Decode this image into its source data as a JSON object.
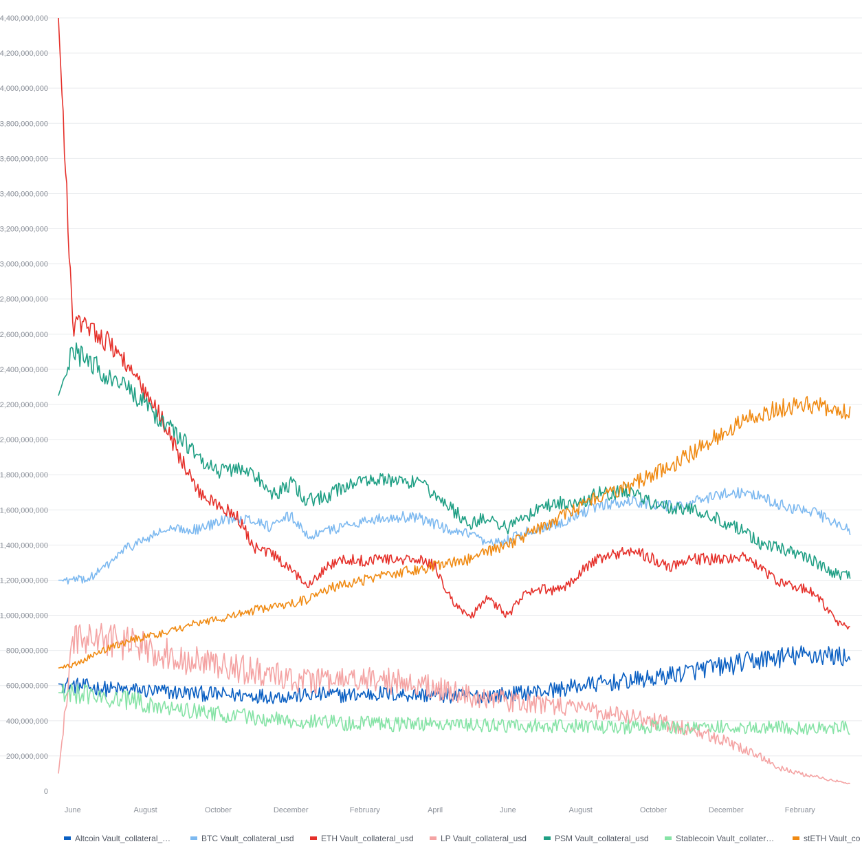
{
  "chart_data": {
    "type": "line",
    "title": "",
    "xlabel": "",
    "ylabel": "",
    "ylim": [
      0,
      4400000000
    ],
    "y_ticks": [
      0,
      200000000,
      400000000,
      600000000,
      800000000,
      1000000000,
      1200000000,
      1400000000,
      1600000000,
      1800000000,
      2000000000,
      2200000000,
      2400000000,
      2600000000,
      2800000000,
      3000000000,
      3200000000,
      3400000000,
      3600000000,
      3800000000,
      4000000000,
      4200000000,
      4400000000
    ],
    "y_tick_labels": [
      "0",
      "200,000,000",
      "400,000,000",
      "600,000,000",
      "800,000,000",
      "1,000,000,000",
      "1,200,000,000",
      "1,400,000,000",
      "1,600,000,000",
      "1,800,000,000",
      "2,000,000,000",
      "2,200,000,000",
      "2,400,000,000",
      "2,600,000,000",
      "2,800,000,000",
      "3,000,000,000",
      "3,200,000,000",
      "3,400,000,000",
      "3,600,000,000",
      "3,800,000,000",
      "4,000,000,000",
      "4,200,000,000",
      "4,400,000,000"
    ],
    "x": [
      "2021-05-20",
      "2021-06-01",
      "2021-06-15",
      "2021-07-01",
      "2021-07-15",
      "2021-08-01",
      "2021-08-15",
      "2021-09-01",
      "2021-09-15",
      "2021-10-01",
      "2021-10-15",
      "2021-11-01",
      "2021-11-15",
      "2021-12-01",
      "2021-12-15",
      "2022-01-01",
      "2022-01-15",
      "2022-02-01",
      "2022-02-15",
      "2022-03-01",
      "2022-03-15",
      "2022-04-01",
      "2022-04-15",
      "2022-05-01",
      "2022-05-15",
      "2022-06-01",
      "2022-06-15",
      "2022-07-01",
      "2022-07-15",
      "2022-08-01",
      "2022-08-15",
      "2022-09-01",
      "2022-09-15",
      "2022-10-01",
      "2022-10-15",
      "2022-11-01",
      "2022-11-15",
      "2022-12-01",
      "2022-12-15",
      "2023-01-01",
      "2023-01-15",
      "2023-02-01",
      "2023-02-15",
      "2023-03-01",
      "2023-03-15"
    ],
    "x_tick_positions": [
      "2021-06-01",
      "2021-08-01",
      "2021-10-01",
      "2021-12-01",
      "2022-02-01",
      "2022-04-01",
      "2022-06-01",
      "2022-08-01",
      "2022-10-01",
      "2022-12-01",
      "2023-02-01"
    ],
    "x_tick_labels": [
      "June",
      "August",
      "October",
      "December",
      "February",
      "April",
      "June",
      "August",
      "October",
      "December",
      "February"
    ],
    "legend_position": "bottom",
    "series": [
      {
        "name": "Altcoin Vault_collateral_usd",
        "legend_label": "Altcoin Vault_collateral_…",
        "color": "#0a5fc2",
        "values": [
          610000000,
          600000000,
          590000000,
          580000000,
          575000000,
          570000000,
          565000000,
          560000000,
          555000000,
          550000000,
          545000000,
          545000000,
          540000000,
          540000000,
          545000000,
          550000000,
          545000000,
          550000000,
          555000000,
          550000000,
          548000000,
          545000000,
          540000000,
          540000000,
          545000000,
          550000000,
          560000000,
          570000000,
          580000000,
          600000000,
          610000000,
          620000000,
          630000000,
          640000000,
          660000000,
          680000000,
          700000000,
          710000000,
          730000000,
          750000000,
          760000000,
          770000000,
          775000000,
          770000000,
          760000000
        ]
      },
      {
        "name": "BTC Vault_collateral_usd",
        "legend_label": "BTC Vault_collateral_usd",
        "color": "#7db9f0",
        "values": [
          1200000000,
          1200000000,
          1210000000,
          1290000000,
          1380000000,
          1430000000,
          1480000000,
          1490000000,
          1490000000,
          1530000000,
          1560000000,
          1540000000,
          1500000000,
          1570000000,
          1450000000,
          1480000000,
          1510000000,
          1540000000,
          1550000000,
          1560000000,
          1560000000,
          1520000000,
          1470000000,
          1460000000,
          1400000000,
          1430000000,
          1470000000,
          1500000000,
          1530000000,
          1580000000,
          1620000000,
          1640000000,
          1650000000,
          1630000000,
          1620000000,
          1640000000,
          1660000000,
          1700000000,
          1700000000,
          1670000000,
          1630000000,
          1600000000,
          1580000000,
          1530000000,
          1480000000
        ]
      },
      {
        "name": "ETH Vault_collateral_usd",
        "legend_label": "ETH Vault_collateral_usd",
        "color": "#e5302a",
        "values": [
          4400000000,
          2650000000,
          2650000000,
          2550000000,
          2450000000,
          2250000000,
          2120000000,
          1870000000,
          1700000000,
          1620000000,
          1580000000,
          1380000000,
          1350000000,
          1250000000,
          1180000000,
          1280000000,
          1320000000,
          1310000000,
          1330000000,
          1310000000,
          1320000000,
          1280000000,
          1080000000,
          990000000,
          1100000000,
          1000000000,
          1120000000,
          1150000000,
          1140000000,
          1250000000,
          1320000000,
          1350000000,
          1370000000,
          1320000000,
          1280000000,
          1320000000,
          1320000000,
          1320000000,
          1340000000,
          1260000000,
          1180000000,
          1160000000,
          1120000000,
          980000000,
          920000000
        ]
      },
      {
        "name": "LP Vault_collateral_usd",
        "legend_label": "LP Vault_collateral_usd",
        "color": "#f4a3a3",
        "values": [
          100000000,
          850000000,
          870000000,
          860000000,
          840000000,
          820000000,
          790000000,
          760000000,
          730000000,
          720000000,
          700000000,
          680000000,
          660000000,
          640000000,
          630000000,
          620000000,
          630000000,
          640000000,
          630000000,
          620000000,
          610000000,
          590000000,
          560000000,
          540000000,
          530000000,
          510000000,
          500000000,
          490000000,
          480000000,
          470000000,
          460000000,
          440000000,
          420000000,
          400000000,
          380000000,
          350000000,
          320000000,
          280000000,
          240000000,
          190000000,
          130000000,
          100000000,
          80000000,
          60000000,
          40000000
        ]
      },
      {
        "name": "PSM Vault_collateral_usd",
        "legend_label": "PSM Vault_collateral_usd",
        "color": "#1f9f84",
        "values": [
          2250000000,
          2500000000,
          2450000000,
          2350000000,
          2300000000,
          2200000000,
          2100000000,
          2000000000,
          1900000000,
          1820000000,
          1840000000,
          1800000000,
          1680000000,
          1750000000,
          1650000000,
          1680000000,
          1730000000,
          1780000000,
          1770000000,
          1760000000,
          1750000000,
          1700000000,
          1600000000,
          1520000000,
          1560000000,
          1500000000,
          1550000000,
          1620000000,
          1640000000,
          1630000000,
          1690000000,
          1700000000,
          1720000000,
          1620000000,
          1620000000,
          1600000000,
          1580000000,
          1520000000,
          1480000000,
          1400000000,
          1380000000,
          1350000000,
          1300000000,
          1240000000,
          1220000000
        ]
      },
      {
        "name": "Stablecoin Vault_collateral_usd",
        "legend_label": "Stablecoin Vault_collater…",
        "color": "#86e3a6",
        "values": [
          560000000,
          555000000,
          545000000,
          530000000,
          515000000,
          500000000,
          485000000,
          470000000,
          455000000,
          440000000,
          430000000,
          420000000,
          410000000,
          400000000,
          395000000,
          390000000,
          385000000,
          385000000,
          380000000,
          380000000,
          380000000,
          378000000,
          375000000,
          375000000,
          373000000,
          372000000,
          372000000,
          370000000,
          370000000,
          368000000,
          368000000,
          365000000,
          365000000,
          365000000,
          363000000,
          362000000,
          362000000,
          362000000,
          360000000,
          360000000,
          360000000,
          360000000,
          360000000,
          360000000,
          360000000
        ]
      },
      {
        "name": "stETH Vault_collateral_usd",
        "legend_label": "stETH Vault_co",
        "color": "#f08a12",
        "values": [
          700000000,
          720000000,
          760000000,
          810000000,
          850000000,
          880000000,
          900000000,
          930000000,
          960000000,
          980000000,
          1000000000,
          1030000000,
          1050000000,
          1070000000,
          1090000000,
          1150000000,
          1180000000,
          1200000000,
          1220000000,
          1240000000,
          1260000000,
          1280000000,
          1300000000,
          1320000000,
          1360000000,
          1400000000,
          1450000000,
          1500000000,
          1560000000,
          1620000000,
          1680000000,
          1700000000,
          1750000000,
          1800000000,
          1850000000,
          1920000000,
          1980000000,
          2050000000,
          2100000000,
          2150000000,
          2180000000,
          2200000000,
          2200000000,
          2180000000,
          2160000000
        ]
      }
    ]
  }
}
